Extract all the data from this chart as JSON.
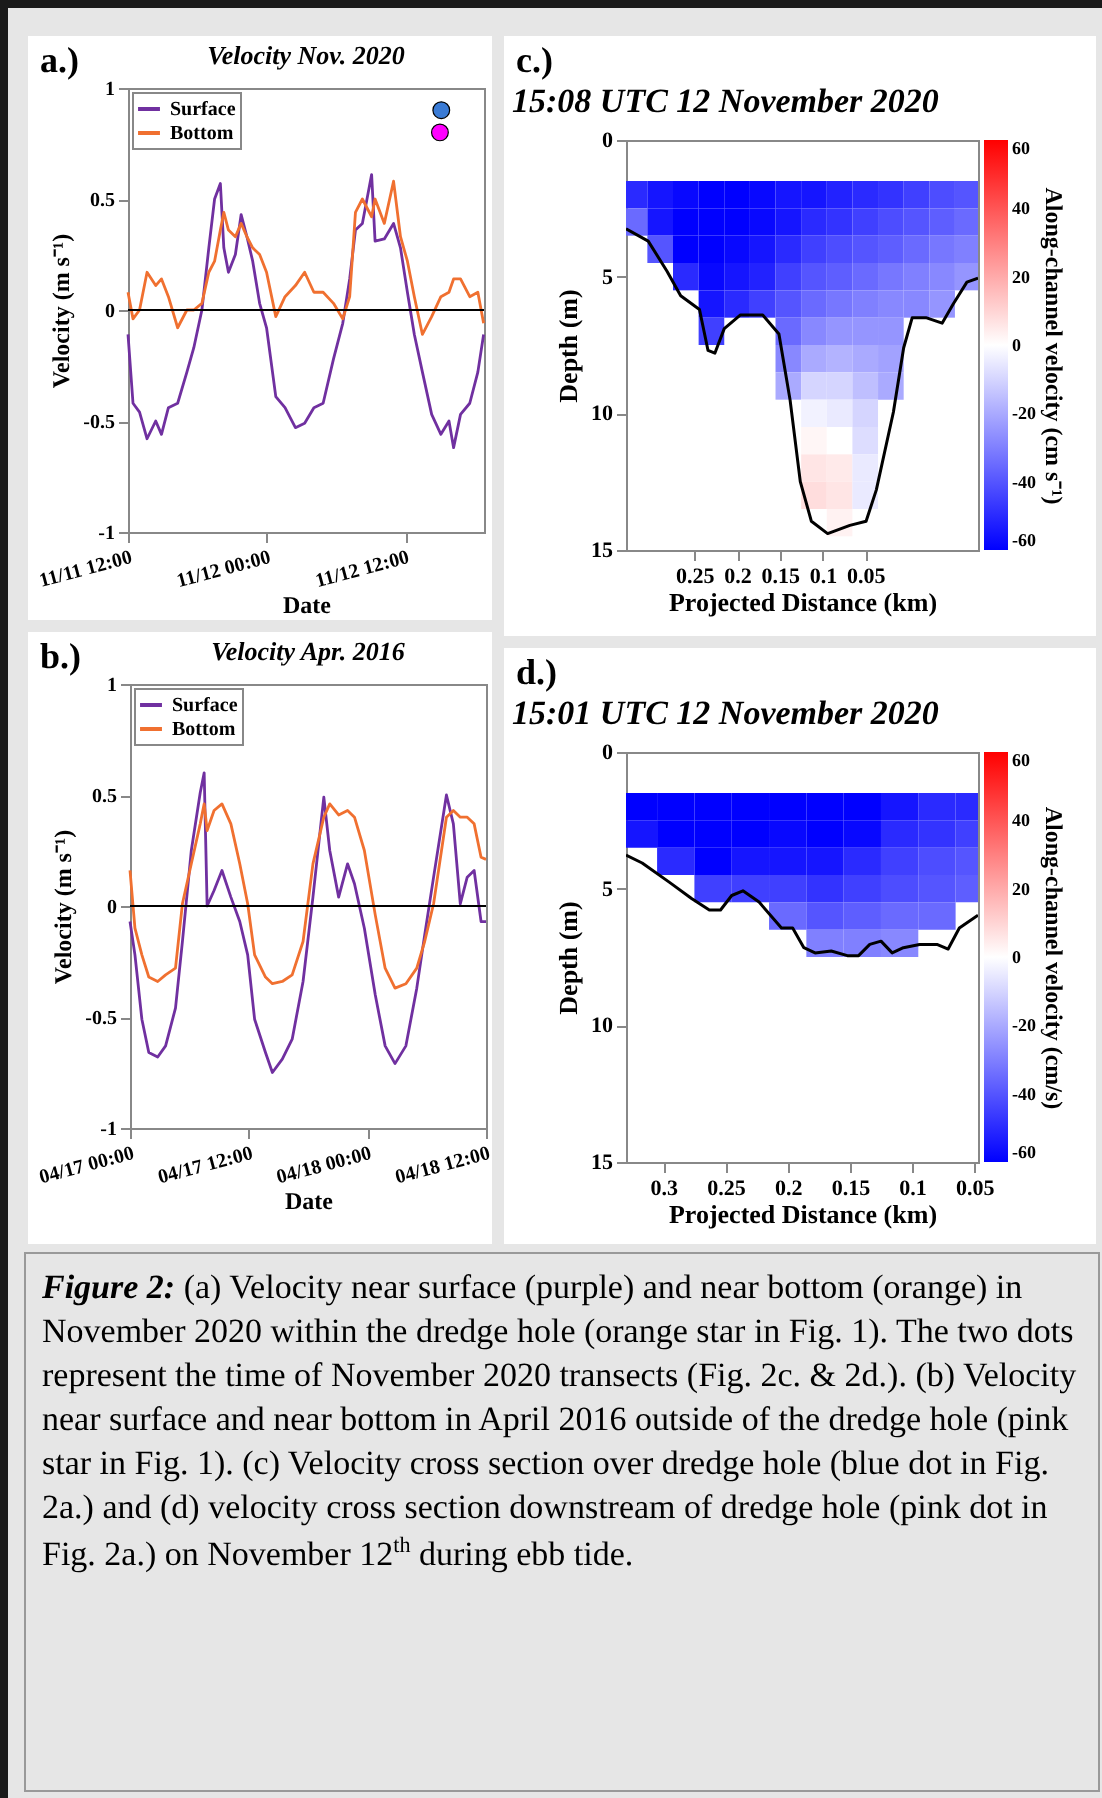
{
  "chart_data": [
    {
      "type": "line",
      "title": "Velocity Nov. 2020",
      "xlabel": "Date",
      "ylabel": "Velocity (m s⁻¹)",
      "annotations": [
        "a.)"
      ],
      "legend": "top left",
      "x": [
        "2020-11-11T12:00",
        "2020-11-11T12:26",
        "2020-11-11T13:00",
        "2020-11-11T13:39",
        "2020-11-11T14:24",
        "2020-11-11T14:54",
        "2020-11-11T15:30",
        "2020-11-11T16:18",
        "2020-11-11T17:06",
        "2020-11-11T17:42",
        "2020-11-11T18:24",
        "2020-11-11T19:00",
        "2020-11-11T19:30",
        "2020-11-11T20:00",
        "2020-11-11T20:18",
        "2020-11-11T20:42",
        "2020-11-11T21:18",
        "2020-11-11T21:48",
        "2020-11-11T22:18",
        "2020-11-11T22:48",
        "2020-11-11T23:24",
        "2020-11-12T00:00",
        "2020-11-12T00:48",
        "2020-11-12T01:36",
        "2020-11-12T02:30",
        "2020-11-12T03:18",
        "2020-11-12T04:06",
        "2020-11-12T04:54",
        "2020-11-12T05:48",
        "2020-11-12T06:36",
        "2020-11-12T07:12",
        "2020-11-12T07:42",
        "2020-11-12T08:18",
        "2020-11-12T09:06",
        "2020-11-12T09:24",
        "2020-11-12T10:12",
        "2020-11-12T11:00",
        "2020-11-12T11:36",
        "2020-11-12T12:12",
        "2020-11-12T12:48",
        "2020-11-12T13:30",
        "2020-11-12T14:18",
        "2020-11-12T15:06",
        "2020-11-12T15:48",
        "2020-11-12T16:12",
        "2020-11-12T16:48",
        "2020-11-12T17:36",
        "2020-11-12T18:18",
        "2020-11-12T18:48"
      ],
      "series": [
        {
          "name": "Surface",
          "color": "#7030a0",
          "values": [
            -0.11,
            -0.42,
            -0.46,
            -0.58,
            -0.5,
            -0.56,
            -0.44,
            -0.42,
            -0.28,
            -0.17,
            0,
            0.28,
            0.5,
            0.57,
            0.28,
            0.17,
            0.25,
            0.43,
            0.33,
            0.22,
            0.03,
            -0.08,
            -0.39,
            -0.44,
            -0.53,
            -0.51,
            -0.44,
            -0.42,
            -0.22,
            -0.06,
            0.14,
            0.36,
            0.39,
            0.61,
            0.31,
            0.32,
            0.39,
            0.28,
            0.08,
            -0.11,
            -0.28,
            -0.47,
            -0.56,
            -0.5,
            -0.62,
            -0.47,
            -0.42,
            -0.28,
            -0.11
          ]
        },
        {
          "name": "Bottom",
          "color": "#f07030",
          "values": [
            0.08,
            -0.04,
            0,
            0.17,
            0.11,
            0.14,
            0.06,
            -0.08,
            0,
            0,
            0.03,
            0.17,
            0.22,
            0.36,
            0.44,
            0.36,
            0.33,
            0.39,
            0.33,
            0.28,
            0.25,
            0.17,
            -0.03,
            0.06,
            0.11,
            0.17,
            0.08,
            0.08,
            0.03,
            -0.04,
            0.06,
            0.44,
            0.5,
            0.42,
            0.5,
            0.39,
            0.58,
            0.33,
            0.22,
            0.06,
            -0.11,
            -0.03,
            0.06,
            0.08,
            0.14,
            0.14,
            0.06,
            0.08,
            -0.06
          ]
        },
        {
          "type": "scatter",
          "marker": "circle",
          "color": "#3a7bd5",
          "x": [
            "2020-11-12T15:08"
          ],
          "values": [
            0.9
          ]
        },
        {
          "type": "scatter",
          "marker": "circle",
          "color": "#ff00ff",
          "x": [
            "2020-11-12T15:01"
          ],
          "values": [
            0.8
          ]
        }
      ],
      "xlim": [
        "2020-11-11T12:00",
        "2020-11-12T18:50"
      ],
      "xticks": [
        {
          "value": "2020-11-11T12:00",
          "label": "11/11 12:00"
        },
        {
          "value": "2020-11-12T00:00",
          "label": "11/12 00:00"
        },
        {
          "value": "2020-11-12T12:00",
          "label": "11/12 12:00"
        }
      ],
      "ylim": [
        -1,
        1
      ],
      "yticks": [
        -1,
        -0.5,
        0,
        0.5,
        1
      ],
      "ref_lines": [
        {
          "axis": "y",
          "value": 0,
          "color": "#000000"
        }
      ]
    },
    {
      "type": "heatmap",
      "title": "15:08 UTC  12 November 2020",
      "xlabel": "Projected Distance (km)",
      "ylabel": "Depth (m)",
      "clabel": "Along-channel velocity (cm s⁻¹)",
      "annotations": [
        "c.)"
      ],
      "x": [
        0.32,
        0.29,
        0.26,
        0.23,
        0.2,
        0.17,
        0.14,
        0.11,
        0.08,
        0.05,
        0.02,
        -0.01,
        -0.04,
        -0.07
      ],
      "y": [
        2,
        3,
        4,
        5,
        6,
        7,
        8,
        9,
        10,
        11,
        12,
        13,
        14
      ],
      "cells": [
        [
          -50,
          -55,
          -58,
          -60,
          -60,
          -58,
          -55,
          -55,
          -52,
          -50,
          -48,
          -45,
          -42,
          -40
        ],
        [
          -35,
          -55,
          -60,
          -60,
          -60,
          -58,
          -55,
          -50,
          -48,
          -45,
          -42,
          -40,
          -38,
          -35
        ],
        [
          null,
          -40,
          -60,
          -60,
          -58,
          -55,
          -50,
          -45,
          -42,
          -40,
          -38,
          -35,
          -32,
          -30
        ],
        [
          null,
          null,
          -50,
          -58,
          -55,
          -52,
          -45,
          -40,
          -38,
          -35,
          -32,
          -30,
          -28,
          -25
        ],
        [
          null,
          null,
          null,
          -55,
          -50,
          -45,
          -40,
          -35,
          -32,
          -30,
          -28,
          -28,
          -25,
          null
        ],
        [
          null,
          null,
          null,
          -45,
          null,
          null,
          -35,
          -28,
          -25,
          -25,
          -25,
          null,
          null,
          null
        ],
        [
          null,
          null,
          null,
          null,
          null,
          null,
          -28,
          -20,
          -18,
          -20,
          -22,
          null,
          null,
          null
        ],
        [
          null,
          null,
          null,
          null,
          null,
          null,
          -20,
          -10,
          -10,
          -15,
          -20,
          null,
          null,
          null
        ],
        [
          null,
          null,
          null,
          null,
          null,
          null,
          null,
          -3,
          -5,
          -10,
          null,
          null,
          null,
          null
        ],
        [
          null,
          null,
          null,
          null,
          null,
          null,
          null,
          2,
          0,
          -8,
          null,
          null,
          null,
          null
        ],
        [
          null,
          null,
          null,
          null,
          null,
          null,
          null,
          6,
          5,
          -5,
          null,
          null,
          null,
          null
        ],
        [
          null,
          null,
          null,
          null,
          null,
          null,
          null,
          8,
          6,
          -5,
          null,
          null,
          null,
          null
        ],
        [
          null,
          null,
          null,
          null,
          null,
          null,
          null,
          null,
          3,
          null,
          null,
          null,
          null,
          null
        ]
      ],
      "series": [
        {
          "type": "line",
          "color": "#000000",
          "x": [
            0.33,
            0.304,
            0.282,
            0.266,
            0.244,
            0.234,
            0.226,
            0.215,
            0.196,
            0.17,
            0.151,
            0.138,
            0.126,
            0.113,
            0.094,
            0.068,
            0.049,
            0.037,
            0.017,
            0.005,
            -0.005,
            -0.021,
            -0.04,
            -0.053,
            -0.069,
            -0.082
          ],
          "values": [
            3.25,
            3.7,
            4.8,
            5.7,
            6.2,
            7.7,
            7.8,
            6.9,
            6.4,
            6.4,
            7.1,
            9.5,
            12.5,
            13.95,
            14.4,
            14.1,
            13.95,
            12.8,
            9.95,
            7.6,
            6.5,
            6.5,
            6.7,
            6,
            5.2,
            5.05
          ]
        }
      ],
      "xlim": [
        0.33,
        -0.082
      ],
      "xticks": [
        0.25,
        0.2,
        0.15,
        0.1,
        0.05
      ],
      "ylim": [
        15,
        0
      ],
      "yticks": [
        0,
        5,
        10,
        15
      ],
      "clim": [
        -60,
        60
      ],
      "cticks": [
        -60,
        -40,
        -20,
        0,
        20,
        40,
        60
      ]
    },
    {
      "type": "line",
      "title": "Velocity Apr. 2016",
      "xlabel": "Date",
      "ylabel": "Velocity (m s⁻¹)",
      "annotations": [
        "b.)"
      ],
      "legend": "top left",
      "x": [
        "2016-04-17T00:00",
        "2016-04-17T00:30",
        "2016-04-17T01:12",
        "2016-04-17T01:54",
        "2016-04-17T02:48",
        "2016-04-17T03:36",
        "2016-04-17T04:36",
        "2016-04-17T05:18",
        "2016-04-17T06:12",
        "2016-04-17T07:06",
        "2016-04-17T07:30",
        "2016-04-17T07:48",
        "2016-04-17T08:30",
        "2016-04-17T09:18",
        "2016-04-17T10:12",
        "2016-04-17T11:06",
        "2016-04-17T11:54",
        "2016-04-17T12:36",
        "2016-04-17T13:42",
        "2016-04-17T14:24",
        "2016-04-17T15:24",
        "2016-04-17T16:24",
        "2016-04-17T17:30",
        "2016-04-17T18:30",
        "2016-04-17T19:36",
        "2016-04-17T20:12",
        "2016-04-17T21:06",
        "2016-04-17T22:00",
        "2016-04-17T22:42",
        "2016-04-17T23:42",
        "2016-04-18T00:48",
        "2016-04-18T01:48",
        "2016-04-18T02:48",
        "2016-04-18T03:54",
        "2016-04-18T05:00",
        "2016-04-18T05:48",
        "2016-04-18T06:42",
        "2016-04-18T08:00",
        "2016-04-18T08:42",
        "2016-04-18T09:24",
        "2016-04-18T10:06",
        "2016-04-18T10:48",
        "2016-04-18T11:30",
        "2016-04-18T12:00"
      ],
      "series": [
        {
          "name": "Surface",
          "color": "#7030a0",
          "values": [
            -0.07,
            -0.22,
            -0.51,
            -0.66,
            -0.68,
            -0.63,
            -0.46,
            -0.16,
            0.25,
            0.51,
            0.6,
            0,
            0.07,
            0.16,
            0.04,
            -0.07,
            -0.22,
            -0.51,
            -0.66,
            -0.75,
            -0.69,
            -0.6,
            -0.34,
            0.04,
            0.49,
            0.25,
            0.04,
            0.19,
            0.1,
            -0.1,
            -0.4,
            -0.63,
            -0.71,
            -0.63,
            -0.37,
            -0.13,
            0.13,
            0.5,
            0.37,
            0.01,
            0.13,
            0.16,
            -0.07,
            -0.07
          ]
        },
        {
          "name": "Bottom",
          "color": "#f07030",
          "values": [
            0.16,
            -0.1,
            -0.22,
            -0.32,
            -0.34,
            -0.31,
            -0.28,
            0.01,
            0.19,
            0.37,
            0.46,
            0.34,
            0.43,
            0.46,
            0.37,
            0.19,
            0.01,
            -0.22,
            -0.32,
            -0.35,
            -0.34,
            -0.31,
            -0.16,
            0.19,
            0.4,
            0.46,
            0.41,
            0.43,
            0.4,
            0.25,
            -0.04,
            -0.28,
            -0.37,
            -0.35,
            -0.28,
            -0.16,
            0.01,
            0.4,
            0.43,
            0.4,
            0.4,
            0.37,
            0.22,
            0.21
          ]
        }
      ],
      "xlim": [
        "2016-04-17T00:00",
        "2016-04-18T12:00"
      ],
      "xticks": [
        {
          "value": "2016-04-17T00:00",
          "label": "04/17 00:00"
        },
        {
          "value": "2016-04-17T12:00",
          "label": "04/17 12:00"
        },
        {
          "value": "2016-04-18T00:00",
          "label": "04/18 00:00"
        },
        {
          "value": "2016-04-18T12:00",
          "label": "04/18 12:00"
        }
      ],
      "ylim": [
        -1,
        1
      ],
      "yticks": [
        -1,
        -0.5,
        0,
        0.5,
        1
      ],
      "ref_lines": [
        {
          "axis": "y",
          "value": 0,
          "color": "#000000"
        }
      ]
    },
    {
      "type": "heatmap",
      "title": "15:01 UTC  12 November 2020",
      "xlabel": "Projected Distance (km)",
      "ylabel": "Depth (m)",
      "clabel": "Along-channel velocity (cm/s)",
      "annotations": [
        "d.)"
      ],
      "x": [
        0.32,
        0.29,
        0.26,
        0.23,
        0.2,
        0.17,
        0.14,
        0.11,
        0.08,
        0.05
      ],
      "y": [
        2,
        3,
        4,
        5,
        6,
        7
      ],
      "cells": [
        [
          -60,
          -60,
          -60,
          -60,
          -60,
          -60,
          -60,
          -55,
          -50,
          -50
        ],
        [
          -55,
          -60,
          -60,
          -60,
          -58,
          -60,
          -58,
          -50,
          -48,
          -45
        ],
        [
          null,
          -50,
          -60,
          -55,
          -55,
          -55,
          -50,
          -45,
          -42,
          -40
        ],
        [
          null,
          null,
          -45,
          -45,
          -45,
          -48,
          -45,
          -42,
          -40,
          -38
        ],
        [
          null,
          null,
          null,
          null,
          -35,
          -40,
          -38,
          -35,
          -35,
          null
        ],
        [
          null,
          null,
          null,
          null,
          null,
          -30,
          -30,
          -28,
          null,
          null
        ]
      ],
      "series": [
        {
          "type": "line",
          "color": "#000000",
          "x": [
            0.33,
            0.317,
            0.295,
            0.277,
            0.263,
            0.254,
            0.245,
            0.236,
            0.223,
            0.205,
            0.196,
            0.187,
            0.178,
            0.165,
            0.152,
            0.143,
            0.134,
            0.125,
            0.116,
            0.107,
            0.094,
            0.08,
            0.071,
            0.062,
            0.047
          ],
          "values": [
            3.77,
            4.06,
            4.77,
            5.37,
            5.78,
            5.78,
            5.25,
            5.08,
            5.49,
            6.44,
            6.44,
            7.16,
            7.35,
            7.28,
            7.45,
            7.45,
            7.04,
            6.92,
            7.35,
            7.16,
            7.04,
            7.04,
            7.21,
            6.44,
            5.97
          ]
        }
      ],
      "xlim": [
        0.33,
        0.047
      ],
      "xticks": [
        0.3,
        0.25,
        0.2,
        0.15,
        0.1,
        0.05
      ],
      "ylim": [
        15,
        0
      ],
      "yticks": [
        0,
        5,
        10,
        15
      ],
      "clim": [
        -60,
        60
      ],
      "cticks": [
        -60,
        -40,
        -20,
        0,
        20,
        40,
        60
      ]
    },
    {
      "type": "other",
      "annotations": [
        "Figure 2:",
        "(a) Velocity near surface (purple) and near bottom (orange) in November 2020 within the dredge hole (orange star in Fig. 1). The two dots represent the time of  November 2020 transects (Fig. 2c. & 2d.). (b) Velocity near surface and near bottom in April 2016 outside of the dredge hole (pink star in Fig. 1). (c) Velocity cross section over dredge hole (blue dot in Fig. 2a.) and (d) velocity cross section downstream of dredge hole (pink dot in Fig. 2a.) on November 12$^{th}$ during ebb tide."
      ]
    }
  ]
}
